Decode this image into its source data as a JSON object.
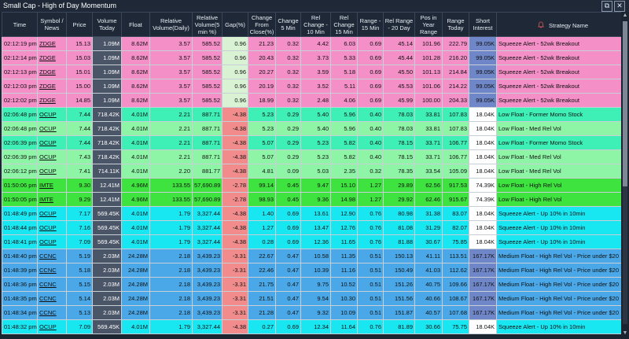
{
  "window": {
    "title": "Small Cap - High of Day Momentum",
    "buttons": [
      {
        "name": "restore-icon",
        "glyph": "⧉"
      },
      {
        "name": "close-icon",
        "glyph": "✕"
      }
    ]
  },
  "columns": [
    "Time",
    "Symbol / News",
    "Price",
    "Volume Today",
    "Float",
    "Relative Volume(Daily)",
    "Relative Volume(5 min %)",
    "Gap(%)",
    "Change From Close(%)",
    "Change 5 Min",
    "Rel Change - 10 Min",
    "Rel Change 15 Min",
    "Range - 15 Min",
    "Rel Range - 20 Day",
    "Pos in Year Range",
    "Range Today",
    "Short Interest",
    "Strategy Name"
  ],
  "colors": {
    "pink": "#f48fc8",
    "teal": "#3ff0b6",
    "mint": "#8ff5a6",
    "green": "#3fe33f",
    "cyan": "#18e7f2",
    "blue": "#4aa8e8",
    "short_white": "#ffffff",
    "short_blue": "#6f86c8",
    "gap_neg": "#f28c8c",
    "gap_pos": "#d9f2d3"
  },
  "rows": [
    {
      "cells": [
        "02:12:19 pm",
        "ZDGE",
        "15.13",
        "1.09M",
        "8.62M",
        "3.57",
        "585.52",
        "0.96",
        "21.23",
        "0.32",
        "4.42",
        "6.03",
        "0.69",
        "45.14",
        "101.96",
        "222.79",
        "99.05K",
        "Squeeze Alert - 52wk Breakout"
      ],
      "color": "pink",
      "gap": "pos",
      "short": "blue"
    },
    {
      "cells": [
        "02:12:14 pm",
        "ZDGE",
        "15.03",
        "1.09M",
        "8.62M",
        "3.57",
        "585.52",
        "0.96",
        "20.43",
        "0.32",
        "3.73",
        "5.33",
        "0.69",
        "45.44",
        "101.28",
        "216.20",
        "99.05K",
        "Squeeze Alert - 52wk Breakout"
      ],
      "color": "pink",
      "gap": "pos",
      "short": "blue"
    },
    {
      "cells": [
        "02:12:13 pm",
        "ZDGE",
        "15.01",
        "1.09M",
        "8.62M",
        "3.57",
        "585.52",
        "0.96",
        "20.27",
        "0.32",
        "3.59",
        "5.18",
        "0.69",
        "45.50",
        "101.13",
        "214.84",
        "99.05K",
        "Squeeze Alert - 52wk Breakout"
      ],
      "color": "pink",
      "gap": "pos",
      "short": "blue"
    },
    {
      "cells": [
        "02:12:03 pm",
        "ZDGE",
        "15.00",
        "1.09M",
        "8.62M",
        "3.57",
        "585.52",
        "0.96",
        "20.19",
        "0.32",
        "3.52",
        "5.11",
        "0.69",
        "45.53",
        "101.06",
        "214.22",
        "99.05K",
        "Squeeze Alert - 52wk Breakout"
      ],
      "color": "pink",
      "gap": "pos",
      "short": "blue"
    },
    {
      "cells": [
        "02:12:02 pm",
        "ZDGE",
        "14.85",
        "1.09M",
        "8.62M",
        "3.57",
        "585.52",
        "0.96",
        "18.99",
        "0.32",
        "2.48",
        "4.06",
        "0.69",
        "45.99",
        "100.00",
        "204.33",
        "99.05K",
        "Squeeze Alert - 52wk Breakout"
      ],
      "color": "pink",
      "gap": "pos",
      "short": "blue"
    },
    {
      "cells": [
        "02:06:48 pm",
        "OCUP",
        "7.44",
        "718.42K",
        "4.01M",
        "2.21",
        "887.71",
        "-4.38",
        "5.23",
        "0.29",
        "5.40",
        "5.96",
        "0.40",
        "78.03",
        "33.81",
        "107.83",
        "18.04K",
        "Low Float - Former Momo Stock"
      ],
      "color": "teal",
      "gap": "neg",
      "short": "white"
    },
    {
      "cells": [
        "02:06:48 pm",
        "OCUP",
        "7.44",
        "718.42K",
        "4.01M",
        "2.21",
        "887.71",
        "-4.38",
        "5.23",
        "0.29",
        "5.40",
        "5.96",
        "0.40",
        "78.03",
        "33.81",
        "107.83",
        "18.04K",
        "Low Float - Med Rel Vol"
      ],
      "color": "mint",
      "gap": "neg",
      "short": "white"
    },
    {
      "cells": [
        "02:06:39 pm",
        "OCUP",
        "7.44",
        "718.42K",
        "4.01M",
        "2.21",
        "887.71",
        "-4.38",
        "5.07",
        "0.29",
        "5.23",
        "5.82",
        "0.40",
        "78.15",
        "33.71",
        "106.77",
        "18.04K",
        "Low Float - Former Momo Stock"
      ],
      "color": "teal",
      "gap": "neg",
      "short": "white"
    },
    {
      "cells": [
        "02:06:39 pm",
        "OCUP",
        "7.43",
        "718.42K",
        "4.01M",
        "2.21",
        "887.71",
        "-4.38",
        "5.07",
        "0.29",
        "5.23",
        "5.82",
        "0.40",
        "78.15",
        "33.71",
        "106.77",
        "18.04K",
        "Low Float - Med Rel Vol"
      ],
      "color": "mint",
      "gap": "neg",
      "short": "white"
    },
    {
      "cells": [
        "02:06:12 pm",
        "OCUP",
        "7.41",
        "714.11K",
        "4.01M",
        "2.20",
        "881.77",
        "-4.38",
        "4.81",
        "0.09",
        "5.03",
        "2.35",
        "0.32",
        "78.35",
        "33.54",
        "105.09",
        "18.04K",
        "Low Float - Med Rel Vol"
      ],
      "color": "mint",
      "gap": "neg",
      "short": "white"
    },
    {
      "cells": [
        "01:50:06 pm",
        "IMTE",
        "9.30",
        "12.41M",
        "4.96M",
        "133.55",
        "57,690.89",
        "-2.78",
        "99.14",
        "0.45",
        "9.47",
        "15.10",
        "1.27",
        "29.89",
        "62.56",
        "917.53",
        "74.39K",
        "Low Float - High Rel Vol"
      ],
      "color": "green",
      "gap": "neg",
      "short": "white"
    },
    {
      "cells": [
        "01:50:05 pm",
        "IMTE",
        "9.29",
        "12.41M",
        "4.96M",
        "133.55",
        "57,690.89",
        "-2.78",
        "98.93",
        "0.45",
        "9.36",
        "14.98",
        "1.27",
        "29.92",
        "62.46",
        "915.67",
        "74.39K",
        "Low Float - High Rel Vol"
      ],
      "color": "green",
      "gap": "neg",
      "short": "white"
    },
    {
      "cells": [
        "01:48:49 pm",
        "OCUP",
        "7.17",
        "569.45K",
        "4.01M",
        "1.79",
        "3,327.44",
        "-4.38",
        "1.40",
        "0.69",
        "13.61",
        "12.90",
        "0.76",
        "80.98",
        "31.38",
        "83.07",
        "18.04K",
        "Squeeze Alert - Up 10% in 10min"
      ],
      "color": "cyan",
      "gap": "neg",
      "short": "white"
    },
    {
      "cells": [
        "01:48:44 pm",
        "OCUP",
        "7.16",
        "569.45K",
        "4.01M",
        "1.79",
        "3,327.44",
        "-4.38",
        "1.27",
        "0.69",
        "13.47",
        "12.76",
        "0.76",
        "81.08",
        "31.29",
        "82.07",
        "18.04K",
        "Squeeze Alert - Up 10% in 10min"
      ],
      "color": "cyan",
      "gap": "neg",
      "short": "white"
    },
    {
      "cells": [
        "01:48:41 pm",
        "OCUP",
        "7.09",
        "569.45K",
        "4.01M",
        "1.79",
        "3,327.44",
        "-4.38",
        "0.28",
        "0.69",
        "12.36",
        "11.65",
        "0.76",
        "81.88",
        "30.67",
        "75.85",
        "18.04K",
        "Squeeze Alert - Up 10% in 10min"
      ],
      "color": "cyan",
      "gap": "neg",
      "short": "white"
    },
    {
      "cells": [
        "01:48:40 pm",
        "CCNC",
        "5.19",
        "2.03M",
        "24.28M",
        "2.18",
        "3,439.23",
        "-3.31",
        "22.67",
        "0.47",
        "10.58",
        "11.35",
        "0.51",
        "150.13",
        "41.11",
        "113.51",
        "167.17K",
        "Medium Float - High Rel Vol - Price under $20"
      ],
      "color": "blue",
      "gap": "neg",
      "short": "blue"
    },
    {
      "cells": [
        "01:48:39 pm",
        "CCNC",
        "5.18",
        "2.03M",
        "24.28M",
        "2.18",
        "3,439.23",
        "-3.31",
        "22.46",
        "0.47",
        "10.39",
        "11.16",
        "0.51",
        "150.49",
        "41.03",
        "112.62",
        "167.17K",
        "Medium Float - High Rel Vol - Price under $20"
      ],
      "color": "blue",
      "gap": "neg",
      "short": "blue"
    },
    {
      "cells": [
        "01:48:36 pm",
        "CCNC",
        "5.15",
        "2.03M",
        "24.28M",
        "2.18",
        "3,439.23",
        "-3.31",
        "21.75",
        "0.47",
        "9.75",
        "10.52",
        "0.51",
        "151.26",
        "40.75",
        "109.66",
        "167.17K",
        "Medium Float - High Rel Vol - Price under $20"
      ],
      "color": "blue",
      "gap": "neg",
      "short": "blue"
    },
    {
      "cells": [
        "01:48:35 pm",
        "CCNC",
        "5.14",
        "2.03M",
        "24.28M",
        "2.18",
        "3,439.23",
        "-3.31",
        "21.51",
        "0.47",
        "9.54",
        "10.30",
        "0.51",
        "151.56",
        "40.66",
        "108.67",
        "167.17K",
        "Medium Float - High Rel Vol - Price under $20"
      ],
      "color": "blue",
      "gap": "neg",
      "short": "blue"
    },
    {
      "cells": [
        "01:48:34 pm",
        "CCNC",
        "5.13",
        "2.03M",
        "24.28M",
        "2.18",
        "3,439.23",
        "-3.31",
        "21.28",
        "0.47",
        "9.32",
        "10.09",
        "0.51",
        "151.87",
        "40.57",
        "107.68",
        "167.17K",
        "Medium Float - High Rel Vol - Price under $20"
      ],
      "color": "blue",
      "gap": "neg",
      "short": "blue"
    },
    {
      "cells": [
        "01:48:32 pm",
        "OCUP",
        "7.09",
        "569.45K",
        "4.01M",
        "1.79",
        "3,327.44",
        "-4.38",
        "0.27",
        "0.69",
        "12.34",
        "11.64",
        "0.76",
        "81.89",
        "30.66",
        "75.75",
        "18.04K",
        "Squeeze Alert - Up 10% in 10min"
      ],
      "color": "cyan",
      "gap": "neg",
      "short": "white"
    }
  ]
}
